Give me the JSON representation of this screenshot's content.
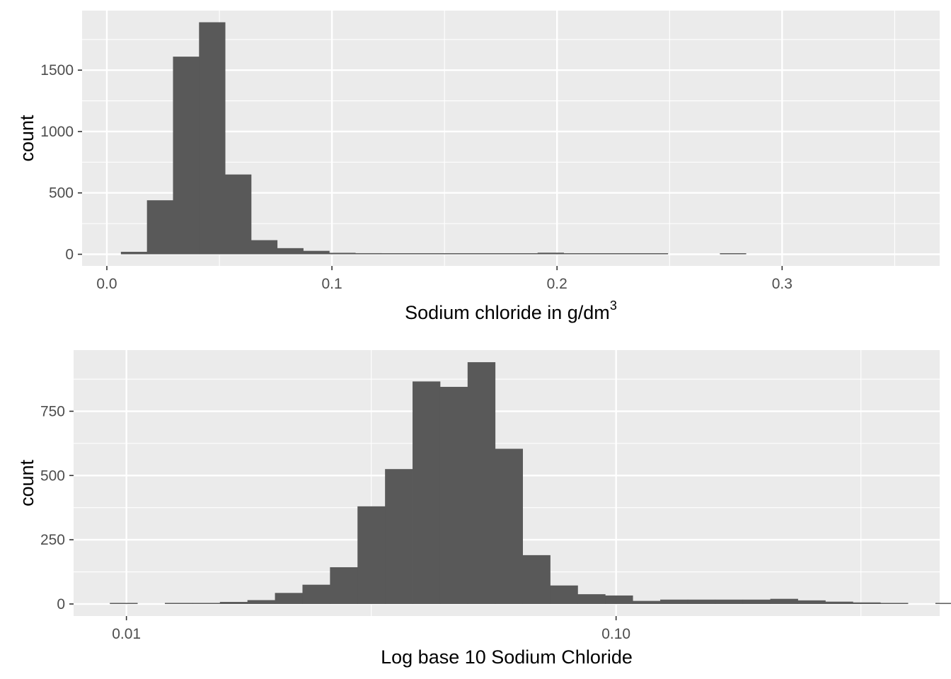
{
  "chart_data": [
    {
      "type": "bar",
      "subtype": "histogram",
      "xlabel": "Sodium chloride in g/dm",
      "xlabel_superscript": "3",
      "ylabel": "count",
      "xlim": [
        -0.011,
        0.37
      ],
      "ylim": [
        -95,
        1985
      ],
      "x_ticks": [
        0.0,
        0.1,
        0.2,
        0.3
      ],
      "x_tick_labels": [
        "0.0",
        "0.1",
        "0.2",
        "0.3"
      ],
      "y_ticks": [
        0,
        500,
        1000,
        1500
      ],
      "y_tick_labels": [
        "0",
        "500",
        "1000",
        "1500"
      ],
      "bin_width": 0.01157,
      "bins_start": 0.00625,
      "counts": [
        20,
        440,
        1610,
        1890,
        650,
        115,
        50,
        28,
        12,
        9,
        8,
        7,
        7,
        6,
        6,
        5,
        13,
        5,
        4,
        3,
        3,
        0,
        0,
        3,
        0,
        0,
        0,
        0,
        0,
        0
      ],
      "grid": true,
      "theme": "ggplot-gray",
      "colors": {
        "bar": "#595959",
        "panel": "#ebebeb",
        "grid": "#ffffff"
      }
    },
    {
      "type": "bar",
      "subtype": "histogram",
      "scale": "log10",
      "xlabel": "Log base 10 Sodium Chloride",
      "ylabel": "count",
      "xlim": [
        0.0078,
        0.458
      ],
      "ylim": [
        -47,
        988
      ],
      "x_ticks": [
        0.01,
        0.1
      ],
      "x_tick_labels": [
        "0.01",
        "0.10"
      ],
      "y_ticks": [
        0,
        250,
        500,
        750
      ],
      "y_tick_labels": [
        "0",
        "250",
        "500",
        "750"
      ],
      "bin_width_log10": 0.0562,
      "bins_start": 0.00925,
      "counts": [
        1,
        0,
        2,
        4,
        8,
        15,
        43,
        75,
        143,
        380,
        525,
        866,
        845,
        941,
        604,
        190,
        72,
        38,
        33,
        12,
        17,
        17,
        17,
        17,
        20,
        14,
        9,
        6,
        4,
        0,
        2
      ],
      "grid": true,
      "theme": "ggplot-gray",
      "colors": {
        "bar": "#595959",
        "panel": "#ebebeb",
        "grid": "#ffffff"
      }
    }
  ]
}
